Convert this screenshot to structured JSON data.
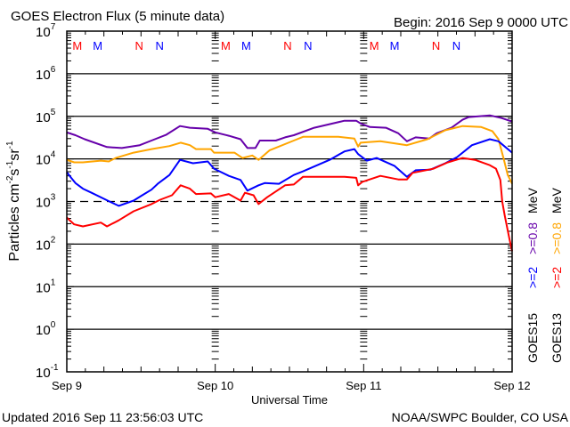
{
  "header": {
    "title": "GOES Electron Flux (5 minute data)",
    "begin": "Begin: 2016 Sep 9 0000 UTC"
  },
  "footer": {
    "updated": "Updated 2016 Sep 11 23:56:03 UTC",
    "source": "NOAA/SWPC Boulder, CO USA"
  },
  "chart_data": {
    "type": "line",
    "title": "GOES Electron Flux (5 minute data)",
    "xlabel": "Universal Time",
    "ylabel": "Particles cm-2s-1sr-1",
    "ylabel_parts": {
      "base": "Particles cm",
      "e1": "-2",
      "mid": "s",
      "e2": "-1",
      "mid2": "sr",
      "e3": "-1"
    },
    "x_unit": "hours since 2016 Sep 9 0000 UTC",
    "xlim": [
      0,
      72
    ],
    "ylim": [
      0.1,
      10000000
    ],
    "yscale": "log",
    "x_ticks": [
      {
        "h": 0,
        "label": "Sep 9"
      },
      {
        "h": 24,
        "label": "Sep 10"
      },
      {
        "h": 48,
        "label": "Sep 11"
      },
      {
        "h": 72,
        "label": "Sep 12"
      }
    ],
    "y_ticks": [
      {
        "exp": "7"
      },
      {
        "exp": "6"
      },
      {
        "exp": "5"
      },
      {
        "exp": "4"
      },
      {
        "exp": "3"
      },
      {
        "exp": "2"
      },
      {
        "exp": "1"
      },
      {
        "exp": "0"
      },
      {
        "exp": "-1"
      }
    ],
    "y_tick_base": "10",
    "threshold": 1000,
    "markers": [
      {
        "label": "M",
        "h": 1.7,
        "color": "#ff0000"
      },
      {
        "label": "M",
        "h": 5.0,
        "color": "#0000ff"
      },
      {
        "label": "N",
        "h": 11.7,
        "color": "#ff0000"
      },
      {
        "label": "N",
        "h": 15.0,
        "color": "#0000ff"
      },
      {
        "label": "M",
        "h": 25.7,
        "color": "#ff0000"
      },
      {
        "label": "M",
        "h": 29.0,
        "color": "#0000ff"
      },
      {
        "label": "N",
        "h": 35.7,
        "color": "#ff0000"
      },
      {
        "label": "N",
        "h": 39.0,
        "color": "#0000ff"
      },
      {
        "label": "M",
        "h": 49.7,
        "color": "#ff0000"
      },
      {
        "label": "M",
        "h": 53.0,
        "color": "#0000ff"
      },
      {
        "label": "N",
        "h": 59.7,
        "color": "#ff0000"
      },
      {
        "label": "N",
        "h": 63.0,
        "color": "#0000ff"
      }
    ],
    "legend": {
      "placement": "right",
      "columns": [
        {
          "satellite": "GOES15",
          "items": [
            {
              "text": ">=2",
              "color": "#0000ff"
            },
            {
              "text": ">=0.8",
              "color": "#6600aa"
            }
          ],
          "unit": "MeV"
        },
        {
          "satellite": "GOES13",
          "items": [
            {
              "text": ">=2",
              "color": "#ff0000"
            },
            {
              "text": ">=0.8",
              "color": "#ffa500"
            }
          ],
          "unit": "MeV"
        }
      ]
    },
    "series": [
      {
        "name": "GOES15 >=0.8 MeV",
        "color": "#6600aa",
        "points": [
          [
            0,
            42000
          ],
          [
            1.4,
            36000
          ],
          [
            2.9,
            29000
          ],
          [
            6.5,
            19000
          ],
          [
            8.9,
            18000
          ],
          [
            11.8,
            21000
          ],
          [
            13.7,
            27000
          ],
          [
            16.1,
            37000
          ],
          [
            18.3,
            59000
          ],
          [
            19.9,
            54000
          ],
          [
            22.8,
            51000
          ],
          [
            24,
            42000
          ],
          [
            26.2,
            35000
          ],
          [
            28.1,
            29000
          ],
          [
            29.2,
            18000
          ],
          [
            30.5,
            18000
          ],
          [
            31.2,
            27000
          ],
          [
            33.8,
            27000
          ],
          [
            35.3,
            32000
          ],
          [
            36.7,
            36000
          ],
          [
            40,
            54000
          ],
          [
            44.9,
            79000
          ],
          [
            46.8,
            79000
          ],
          [
            47.5,
            68000
          ],
          [
            49,
            56000
          ],
          [
            51.6,
            54000
          ],
          [
            53.6,
            40000
          ],
          [
            55,
            26000
          ],
          [
            56.4,
            32000
          ],
          [
            58.6,
            30000
          ],
          [
            59.8,
            40000
          ],
          [
            62.2,
            54000
          ],
          [
            64,
            83000
          ],
          [
            65,
            96000
          ],
          [
            68.4,
            105000
          ],
          [
            70.3,
            91000
          ],
          [
            72,
            75000
          ]
        ]
      },
      {
        "name": "GOES13 >=0.8 MeV",
        "color": "#ffa500",
        "points": [
          [
            0,
            9500
          ],
          [
            1.2,
            8300
          ],
          [
            2.6,
            8300
          ],
          [
            5.5,
            9100
          ],
          [
            6.8,
            8700
          ],
          [
            7.9,
            10500
          ],
          [
            10.8,
            14000
          ],
          [
            13.7,
            17000
          ],
          [
            16.6,
            20000
          ],
          [
            18.4,
            24000
          ],
          [
            19.9,
            21000
          ],
          [
            20.9,
            17000
          ],
          [
            23.3,
            17000
          ],
          [
            23.8,
            14000
          ],
          [
            27.1,
            14000
          ],
          [
            28.4,
            10500
          ],
          [
            30,
            12000
          ],
          [
            31,
            9500
          ],
          [
            32.8,
            16000
          ],
          [
            36.7,
            27000
          ],
          [
            38.2,
            33000
          ],
          [
            43.9,
            33000
          ],
          [
            46.5,
            30000
          ],
          [
            47.1,
            19500
          ],
          [
            47.5,
            24000
          ],
          [
            50.7,
            26000
          ],
          [
            55,
            21000
          ],
          [
            58.3,
            29000
          ],
          [
            61.2,
            47000
          ],
          [
            64,
            59000
          ],
          [
            67,
            56000
          ],
          [
            68.8,
            45000
          ],
          [
            69.8,
            29000
          ],
          [
            70.6,
            10500
          ],
          [
            71.3,
            4200
          ],
          [
            72,
            2600
          ]
        ]
      },
      {
        "name": "GOES15 >=2 MeV",
        "color": "#0000ff",
        "points": [
          [
            0,
            4900
          ],
          [
            0.7,
            3600
          ],
          [
            1.4,
            2700
          ],
          [
            2.6,
            2000
          ],
          [
            4,
            1600
          ],
          [
            6.9,
            1000
          ],
          [
            8.4,
            790
          ],
          [
            10.8,
            1050
          ],
          [
            12.2,
            1400
          ],
          [
            13.7,
            1900
          ],
          [
            14.7,
            2600
          ],
          [
            16.6,
            4200
          ],
          [
            18.3,
            9500
          ],
          [
            20.4,
            7900
          ],
          [
            22.8,
            8700
          ],
          [
            23.8,
            5900
          ],
          [
            26.2,
            4000
          ],
          [
            28.1,
            3200
          ],
          [
            29.2,
            1800
          ],
          [
            31,
            2400
          ],
          [
            32,
            2700
          ],
          [
            34.3,
            2600
          ],
          [
            36.7,
            4200
          ],
          [
            38.2,
            5100
          ],
          [
            42.5,
            9500
          ],
          [
            44.9,
            15000
          ],
          [
            46.5,
            17000
          ],
          [
            47.1,
            13000
          ],
          [
            48.5,
            9100
          ],
          [
            50.1,
            10500
          ],
          [
            53,
            6800
          ],
          [
            55,
            3800
          ],
          [
            56.4,
            5400
          ],
          [
            58.8,
            5600
          ],
          [
            61.2,
            7900
          ],
          [
            63.1,
            11000
          ],
          [
            65.5,
            21000
          ],
          [
            68.4,
            29000
          ],
          [
            69.8,
            26000
          ],
          [
            72,
            14000
          ]
        ]
      },
      {
        "name": "GOES13 >=2 MeV",
        "color": "#ff0000",
        "points": [
          [
            0,
            420
          ],
          [
            0.3,
            380
          ],
          [
            1.2,
            290
          ],
          [
            2.6,
            260
          ],
          [
            5.5,
            320
          ],
          [
            6.5,
            260
          ],
          [
            8.4,
            360
          ],
          [
            10.8,
            590
          ],
          [
            13.7,
            870
          ],
          [
            15.1,
            1100
          ],
          [
            17,
            1400
          ],
          [
            18.4,
            2400
          ],
          [
            19.9,
            2000
          ],
          [
            20.9,
            1500
          ],
          [
            23.3,
            1550
          ],
          [
            24,
            1260
          ],
          [
            26.2,
            1500
          ],
          [
            28.1,
            1050
          ],
          [
            28.8,
            1600
          ],
          [
            30.2,
            1400
          ],
          [
            31,
            870
          ],
          [
            32.4,
            1260
          ],
          [
            35.3,
            2400
          ],
          [
            36.7,
            2500
          ],
          [
            38.2,
            3800
          ],
          [
            44.9,
            3800
          ],
          [
            46.8,
            3600
          ],
          [
            47.1,
            2400
          ],
          [
            47.8,
            2900
          ],
          [
            50.7,
            4000
          ],
          [
            53.6,
            3300
          ],
          [
            55,
            3300
          ],
          [
            55.9,
            4700
          ],
          [
            59.3,
            5900
          ],
          [
            61.6,
            8300
          ],
          [
            64,
            10500
          ],
          [
            66,
            9500
          ],
          [
            68.4,
            7100
          ],
          [
            69.4,
            5900
          ],
          [
            70.1,
            3200
          ],
          [
            70.4,
            1000
          ],
          [
            70.8,
            470
          ],
          [
            71.6,
            126
          ],
          [
            72,
            68
          ]
        ]
      }
    ]
  }
}
